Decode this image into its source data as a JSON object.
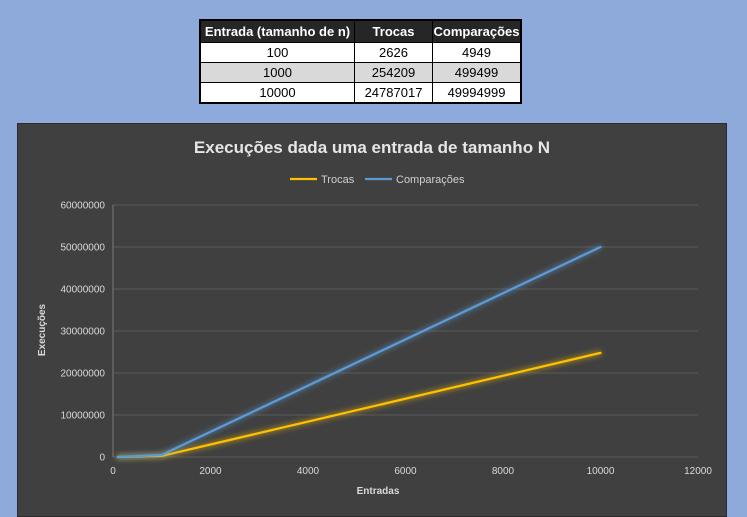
{
  "table": {
    "headers": [
      "Entrada (tamanho de n)",
      "Trocas",
      "Comparações"
    ],
    "rows": [
      [
        "100",
        "2626",
        "4949"
      ],
      [
        "1000",
        "254209",
        "499499"
      ],
      [
        "10000",
        "24787017",
        "49994999"
      ]
    ]
  },
  "chart_data": {
    "type": "line",
    "title": "Execuções dada uma entrada de tamanho N",
    "xlabel": "Entradas",
    "ylabel": "Execuções",
    "xlim": [
      0,
      12000
    ],
    "ylim": [
      0,
      60000000
    ],
    "xticks": [
      0,
      2000,
      4000,
      6000,
      8000,
      10000,
      12000
    ],
    "yticks": [
      0,
      10000000,
      20000000,
      30000000,
      40000000,
      50000000,
      60000000
    ],
    "x": [
      100,
      1000,
      10000
    ],
    "series": [
      {
        "name": "Trocas",
        "values": [
          2626,
          254209,
          24787017
        ],
        "color": "#ffc000"
      },
      {
        "name": "Comparações",
        "values": [
          4949,
          499499,
          49994999
        ],
        "color": "#5b9bd5"
      }
    ],
    "legend": "top",
    "grid": true
  },
  "colors": {
    "background": "#8eaadb",
    "panel": "#404040"
  }
}
